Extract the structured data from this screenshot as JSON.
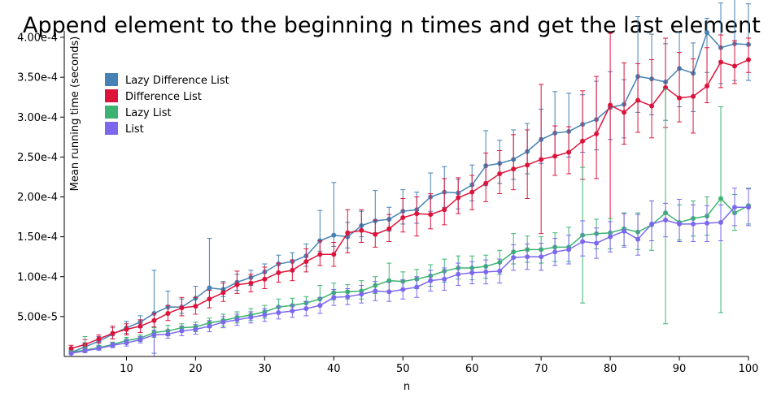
{
  "chart_data": {
    "type": "line",
    "title": "Append element to the beginning n times and get the last element",
    "xlabel": "n",
    "ylabel": "Mean running time (seconds)",
    "xlim": [
      1,
      100
    ],
    "ylim": [
      0,
      0.0004
    ],
    "xticks": [
      10,
      20,
      30,
      40,
      50,
      60,
      70,
      80,
      90,
      100
    ],
    "xtick_labels": [
      "10",
      "20",
      "30",
      "40",
      "50",
      "60",
      "70",
      "80",
      "90",
      "100"
    ],
    "yticks": [
      5e-05,
      0.0001,
      0.00015,
      0.0002,
      0.00025,
      0.0003,
      0.00035,
      0.0004
    ],
    "ytick_labels": [
      "5.00e-5",
      "1.00e-4",
      "1.50e-4",
      "2.00e-4",
      "2.50e-4",
      "3.00e-4",
      "3.50e-4",
      "4.00e-4"
    ],
    "grid": false,
    "legend_position": "upper-left",
    "x": [
      2,
      4,
      6,
      8,
      10,
      12,
      14,
      16,
      18,
      20,
      22,
      24,
      26,
      28,
      30,
      32,
      34,
      36,
      38,
      40,
      42,
      44,
      46,
      48,
      50,
      52,
      54,
      56,
      58,
      60,
      62,
      64,
      66,
      68,
      70,
      72,
      74,
      76,
      78,
      80,
      82,
      84,
      86,
      88,
      90,
      92,
      94,
      96,
      98,
      100
    ],
    "series": [
      {
        "name": "Lazy Difference List",
        "color": "#4682b4",
        "values": [
          5e-06,
          1.2e-05,
          1.9e-05,
          2.8e-05,
          3.6e-05,
          4.3e-05,
          5.4e-05,
          6.2e-05,
          6.2e-05,
          7.3e-05,
          8.6e-05,
          8.4e-05,
          9.3e-05,
          9.9e-05,
          0.000106,
          0.000116,
          0.000119,
          0.000126,
          0.000145,
          0.000152,
          0.00015,
          0.000164,
          0.00017,
          0.000172,
          0.000182,
          0.000184,
          0.0002,
          0.000206,
          0.000205,
          0.000215,
          0.000239,
          0.000242,
          0.000247,
          0.000257,
          0.000272,
          0.00028,
          0.000282,
          0.000291,
          0.000297,
          0.000312,
          0.000316,
          0.000351,
          0.000348,
          0.000344,
          0.000361,
          0.000355,
          0.000406,
          0.000387,
          0.000392,
          0.000391
        ],
        "err_low": [
          2e-06,
          4e-06,
          5e-06,
          6e-06,
          7e-06,
          7e-06,
          5e-05,
          9e-06,
          8e-06,
          9e-06,
          1.3e-05,
          9e-06,
          1e-05,
          1e-05,
          1e-05,
          1.1e-05,
          1.1e-05,
          1.3e-05,
          1.3e-05,
          1.4e-05,
          1.4e-05,
          1.4e-05,
          1.5e-05,
          1.5e-05,
          1.6e-05,
          1.7e-05,
          1.8e-05,
          1.9e-05,
          2e-05,
          2e-05,
          2.5e-05,
          2.5e-05,
          2.5e-05,
          2.8e-05,
          3e-05,
          3e-05,
          3.2e-05,
          3.5e-05,
          3.8e-05,
          4e-05,
          4.2e-05,
          4.5e-05,
          4.5e-05,
          4.8e-05,
          4.8e-05,
          4.8e-05,
          5e-05,
          4.5e-05,
          4.6e-05,
          4.5e-05
        ],
        "err_high": [
          3e-06,
          5e-06,
          6e-06,
          8e-06,
          8e-06,
          8e-06,
          5.4e-05,
          2e-05,
          1e-05,
          1.5e-05,
          6.2e-05,
          1e-05,
          1e-05,
          9e-06,
          1e-05,
          1.1e-05,
          1.1e-05,
          1.5e-05,
          3.8e-05,
          6.6e-05,
          1.8e-05,
          1.8e-05,
          3.8e-05,
          1.5e-05,
          2.7e-05,
          2.2e-05,
          3e-05,
          3.2e-05,
          1.7e-05,
          2.5e-05,
          4.4e-05,
          2.9e-05,
          3.7e-05,
          3.5e-05,
          3.8e-05,
          5.2e-05,
          4.8e-05,
          3.7e-05,
          4.8e-05,
          4.5e-05,
          3.1e-05,
          7.5e-05,
          5.6e-05,
          4.8e-05,
          4.5e-05,
          3.8e-05,
          1.8e-05,
          5.6e-05,
          5.7e-05,
          5.1e-05
        ]
      },
      {
        "name": "Difference List",
        "color": "#dc143c",
        "values": [
          1e-05,
          1.5e-05,
          2.2e-05,
          2.9e-05,
          3.4e-05,
          3.8e-05,
          4.5e-05,
          5.4e-05,
          6.1e-05,
          6.3e-05,
          7.2e-05,
          8e-05,
          9e-05,
          9.2e-05,
          9.7e-05,
          0.000105,
          0.000108,
          0.000119,
          0.000128,
          0.000128,
          0.000155,
          0.000158,
          0.000153,
          0.00016,
          0.000174,
          0.000179,
          0.000178,
          0.000184,
          0.000199,
          0.000206,
          0.000217,
          0.000229,
          0.000235,
          0.00024,
          0.000247,
          0.000251,
          0.000256,
          0.00027,
          0.000279,
          0.000315,
          0.000306,
          0.000321,
          0.000314,
          0.000337,
          0.000324,
          0.000326,
          0.000339,
          0.000369,
          0.000364,
          0.000372
        ],
        "err_low": [
          4e-06,
          5e-06,
          5e-06,
          7e-06,
          7e-06,
          8e-06,
          8e-06,
          9e-06,
          1e-05,
          1e-05,
          1.1e-05,
          1.1e-05,
          1.1e-05,
          1.1e-05,
          1.2e-05,
          1.2e-05,
          1.3e-05,
          1.3e-05,
          1.4e-05,
          1.5e-05,
          2.5e-05,
          1.5e-05,
          1.6e-05,
          1.6e-05,
          1.8e-05,
          2.8e-05,
          1.8e-05,
          1.9e-05,
          2e-05,
          2.2e-05,
          2.3e-05,
          2.5e-05,
          2.6e-05,
          4.2e-05,
          9.3e-05,
          2.4e-05,
          2.7e-05,
          4.8e-05,
          5.6e-05,
          0.000165,
          4e-05,
          4e-05,
          4e-05,
          5e-05,
          3e-05,
          4.6e-05,
          2.1e-05,
          3.2e-05,
          2.2e-05,
          1.6e-05
        ],
        "err_high": [
          4e-06,
          6e-06,
          5e-06,
          9e-06,
          7e-06,
          8e-06,
          9e-06,
          1e-05,
          1.3e-05,
          1.1e-05,
          1.1e-05,
          1.2e-05,
          1.7e-05,
          1.1e-05,
          1.5e-05,
          1.2e-05,
          1.3e-05,
          1.6e-05,
          1.7e-05,
          1.5e-05,
          2.9e-05,
          2.6e-05,
          1.8e-05,
          1.8e-05,
          2.4e-05,
          2.1e-05,
          2.6e-05,
          3.9e-05,
          2.5e-05,
          2.1e-05,
          3.8e-05,
          2.9e-05,
          4.3e-05,
          4.4e-05,
          9.4e-05,
          3.8e-05,
          3.2e-05,
          6.3e-05,
          7.2e-05,
          9e-05,
          6.2e-05,
          4.6e-05,
          5.8e-05,
          6.2e-05,
          5.7e-05,
          4.7e-05,
          4.8e-05,
          3.4e-05,
          3.2e-05,
          2.7e-05
        ]
      },
      {
        "name": "Lazy List",
        "color": "#3cb371",
        "values": [
          5e-06,
          8e-06,
          1.1e-05,
          1.5e-05,
          2e-05,
          2.3e-05,
          3e-05,
          3.2e-05,
          3.6e-05,
          3.7e-05,
          4.2e-05,
          4.5e-05,
          4.9e-05,
          5.2e-05,
          5.6e-05,
          6.2e-05,
          6.4e-05,
          6.7e-05,
          7.2e-05,
          8e-05,
          8.1e-05,
          8.2e-05,
          8.9e-05,
          9.5e-05,
          9.4e-05,
          9.7e-05,
          0.000101,
          0.000107,
          0.000111,
          0.000111,
          0.000113,
          0.000118,
          0.000131,
          0.000134,
          0.000134,
          0.000137,
          0.000137,
          0.000152,
          0.000154,
          0.000155,
          0.00016,
          0.000156,
          0.000165,
          0.00018,
          0.000168,
          0.000173,
          0.000176,
          0.000198,
          0.00018,
          0.000189
        ],
        "err_low": [
          2e-06,
          3e-06,
          2e-06,
          3e-06,
          4e-06,
          4e-06,
          6e-06,
          6e-06,
          5e-06,
          6e-06,
          6e-06,
          7e-06,
          7e-06,
          7e-06,
          8e-06,
          7e-06,
          7e-06,
          8e-06,
          9e-06,
          9e-06,
          9e-06,
          1e-05,
          1e-05,
          1.4e-05,
          1.1e-05,
          1.2e-05,
          1.3e-05,
          1.4e-05,
          1.4e-05,
          1.5e-05,
          1.5e-05,
          1.5e-05,
          1.5e-05,
          1.6e-05,
          1.7e-05,
          1.8e-05,
          1.8e-05,
          8.5e-05,
          1.9e-05,
          2e-05,
          2.1e-05,
          2.2e-05,
          3.2e-05,
          0.000139,
          2.2e-05,
          2.2e-05,
          2.4e-05,
          0.000143,
          2.2e-05,
          2.3e-05
        ],
        "err_high": [
          2e-06,
          1.7e-05,
          2e-06,
          3e-06,
          4e-06,
          4e-06,
          6e-06,
          7e-06,
          5e-06,
          6e-06,
          6e-06,
          8e-06,
          7e-06,
          8e-06,
          8e-06,
          1e-05,
          9e-06,
          8e-06,
          1.7e-05,
          1.2e-05,
          9e-06,
          1.3e-05,
          1.1e-05,
          2.2e-05,
          1.2e-05,
          1.2e-05,
          1.4e-05,
          1.5e-05,
          1.5e-05,
          1.5e-05,
          1.4e-05,
          1.5e-05,
          2.3e-05,
          1.7e-05,
          1.6e-05,
          1.8e-05,
          2.5e-05,
          8.5e-05,
          1.8e-05,
          1.8e-05,
          2e-05,
          2.4e-05,
          3e-05,
          0.000155,
          2.2e-05,
          2.2e-05,
          2.4e-05,
          0.000115,
          2.3e-05,
          2.2e-05
        ]
      },
      {
        "name": "List",
        "color": "#7b68ee",
        "values": [
          4e-06,
          7e-06,
          1e-05,
          1.4e-05,
          1.7e-05,
          2.1e-05,
          2.7e-05,
          2.8e-05,
          3.2e-05,
          3.4e-05,
          3.8e-05,
          4.3e-05,
          4.6e-05,
          4.9e-05,
          5.2e-05,
          5.5e-05,
          5.7e-05,
          6e-05,
          6.4e-05,
          7.4e-05,
          7.5e-05,
          7.8e-05,
          8.2e-05,
          8.1e-05,
          8.4e-05,
          8.7e-05,
          9.5e-05,
          9.7e-05,
          0.000103,
          0.000105,
          0.000106,
          0.000107,
          0.000124,
          0.000125,
          0.000125,
          0.000131,
          0.000134,
          0.000144,
          0.000142,
          0.00015,
          0.000157,
          0.000147,
          0.000166,
          0.000171,
          0.000166,
          0.000166,
          0.000167,
          0.000168,
          0.000187,
          0.000187
        ],
        "err_low": [
          1e-06,
          2e-06,
          2e-06,
          3e-06,
          4e-06,
          4e-06,
          2.7e-05,
          5e-06,
          6e-06,
          6e-06,
          7e-06,
          7e-06,
          7e-06,
          7e-06,
          8e-06,
          8e-06,
          8e-06,
          9e-06,
          1e-05,
          1e-05,
          1e-05,
          1.1e-05,
          1.2e-05,
          1.2e-05,
          1.2e-05,
          1.3e-05,
          1.3e-05,
          1.4e-05,
          1.4e-05,
          1.4e-05,
          1.5e-05,
          1.5e-05,
          1.6e-05,
          1.6e-05,
          1.7e-05,
          1.7e-05,
          1.8e-05,
          1.8e-05,
          1.9e-05,
          1.9e-05,
          2e-05,
          2e-05,
          2.1e-05,
          2.1e-05,
          2.2e-05,
          2.2e-05,
          2.3e-05,
          2.3e-05,
          2.3e-05,
          2.3e-05
        ],
        "err_high": [
          1e-06,
          2e-06,
          2e-06,
          3e-06,
          4e-06,
          4e-06,
          6e-06,
          5e-06,
          6e-06,
          6e-06,
          7e-06,
          7e-06,
          7e-06,
          7e-06,
          8e-06,
          8e-06,
          8e-06,
          9e-06,
          1e-05,
          1e-05,
          1e-05,
          1.1e-05,
          1.2e-05,
          1.2e-05,
          1.2e-05,
          1.3e-05,
          1.3e-05,
          1.4e-05,
          1.4e-05,
          1.4e-05,
          1.5e-05,
          1.5e-05,
          1.6e-05,
          1.6e-05,
          1.7e-05,
          1.7e-05,
          1.8e-05,
          2.6e-05,
          1.9e-05,
          1.9e-05,
          2.2e-05,
          3.1e-05,
          2.9e-05,
          2.1e-05,
          3.1e-05,
          2.4e-05,
          2.2e-05,
          2.2e-05,
          2.4e-05,
          2.3e-05
        ]
      }
    ]
  }
}
